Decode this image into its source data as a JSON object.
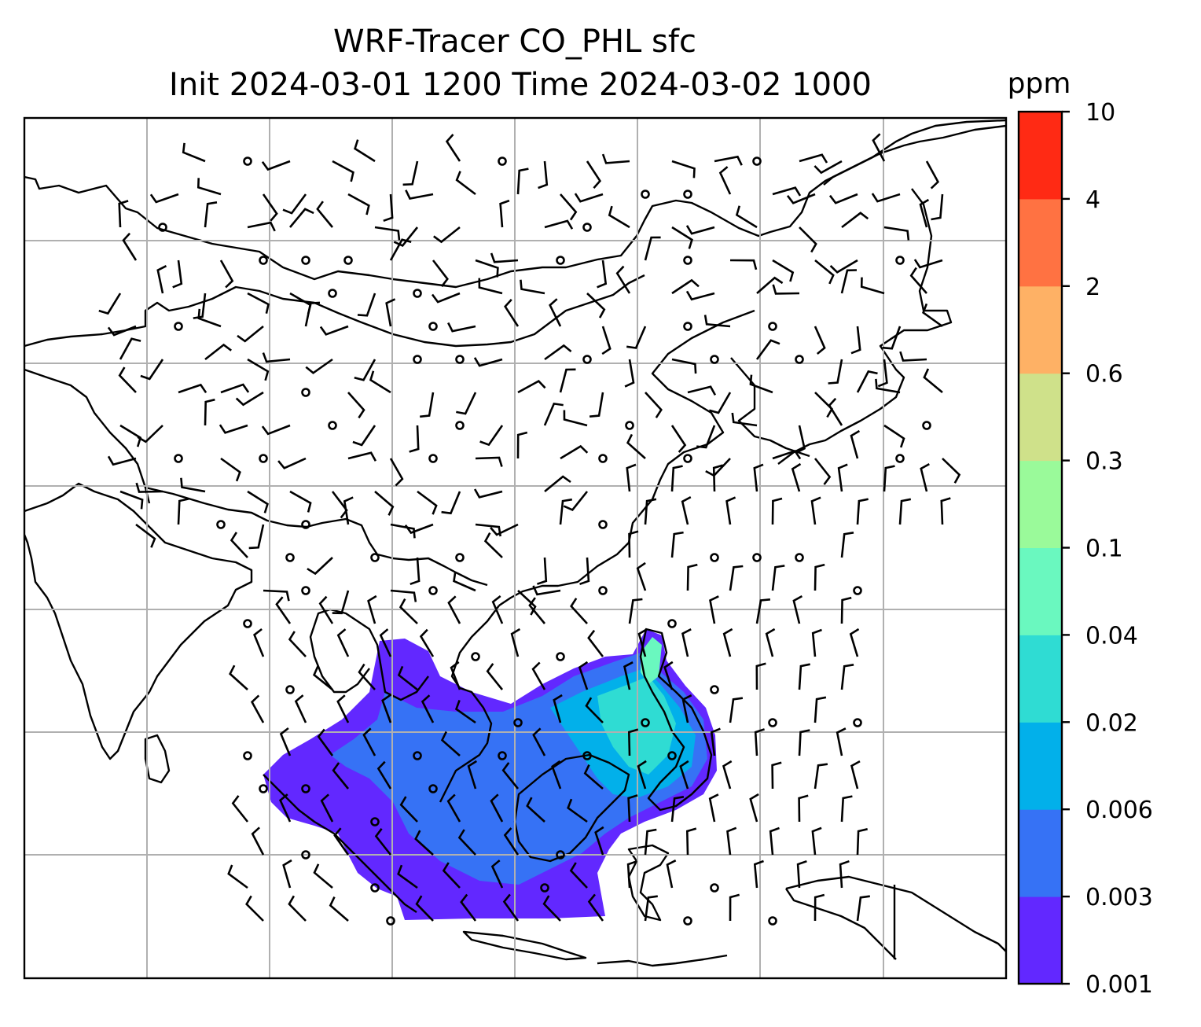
{
  "title_line1": "WRF-Tracer CO_PHL sfc",
  "title_line2": "Init 2024-03-01 1200 Time 2024-03-02 1000",
  "colorbar": {
    "units": "ppm",
    "levels": [
      "0.001",
      "0.003",
      "0.006",
      "0.02",
      "0.04",
      "0.1",
      "0.3",
      "0.6",
      "2",
      "4",
      "10"
    ],
    "colors": [
      "#6228ff",
      "#3672f5",
      "#02b0ea",
      "#2fdcd3",
      "#6af8bf",
      "#9afa9a",
      "#cfe18a",
      "#feb165",
      "#ff7242",
      "#ff2a14"
    ]
  },
  "chart_data": {
    "type": "heatmap",
    "title": "WRF-Tracer CO_PHL sfc",
    "subtitle": "Init 2024-03-01 1200 Time 2024-03-02 1000",
    "variable": "CO_PHL surface tracer concentration",
    "units": "ppm",
    "color_levels": [
      0.001,
      0.003,
      0.006,
      0.02,
      0.04,
      0.1,
      0.3,
      0.6,
      2,
      4,
      10
    ],
    "colormap": "rainbow (purple to red)",
    "overlay": "wind barbs and coastlines/borders",
    "grid": true,
    "map_region": "South and East Asia, Maritime Continent"
  }
}
